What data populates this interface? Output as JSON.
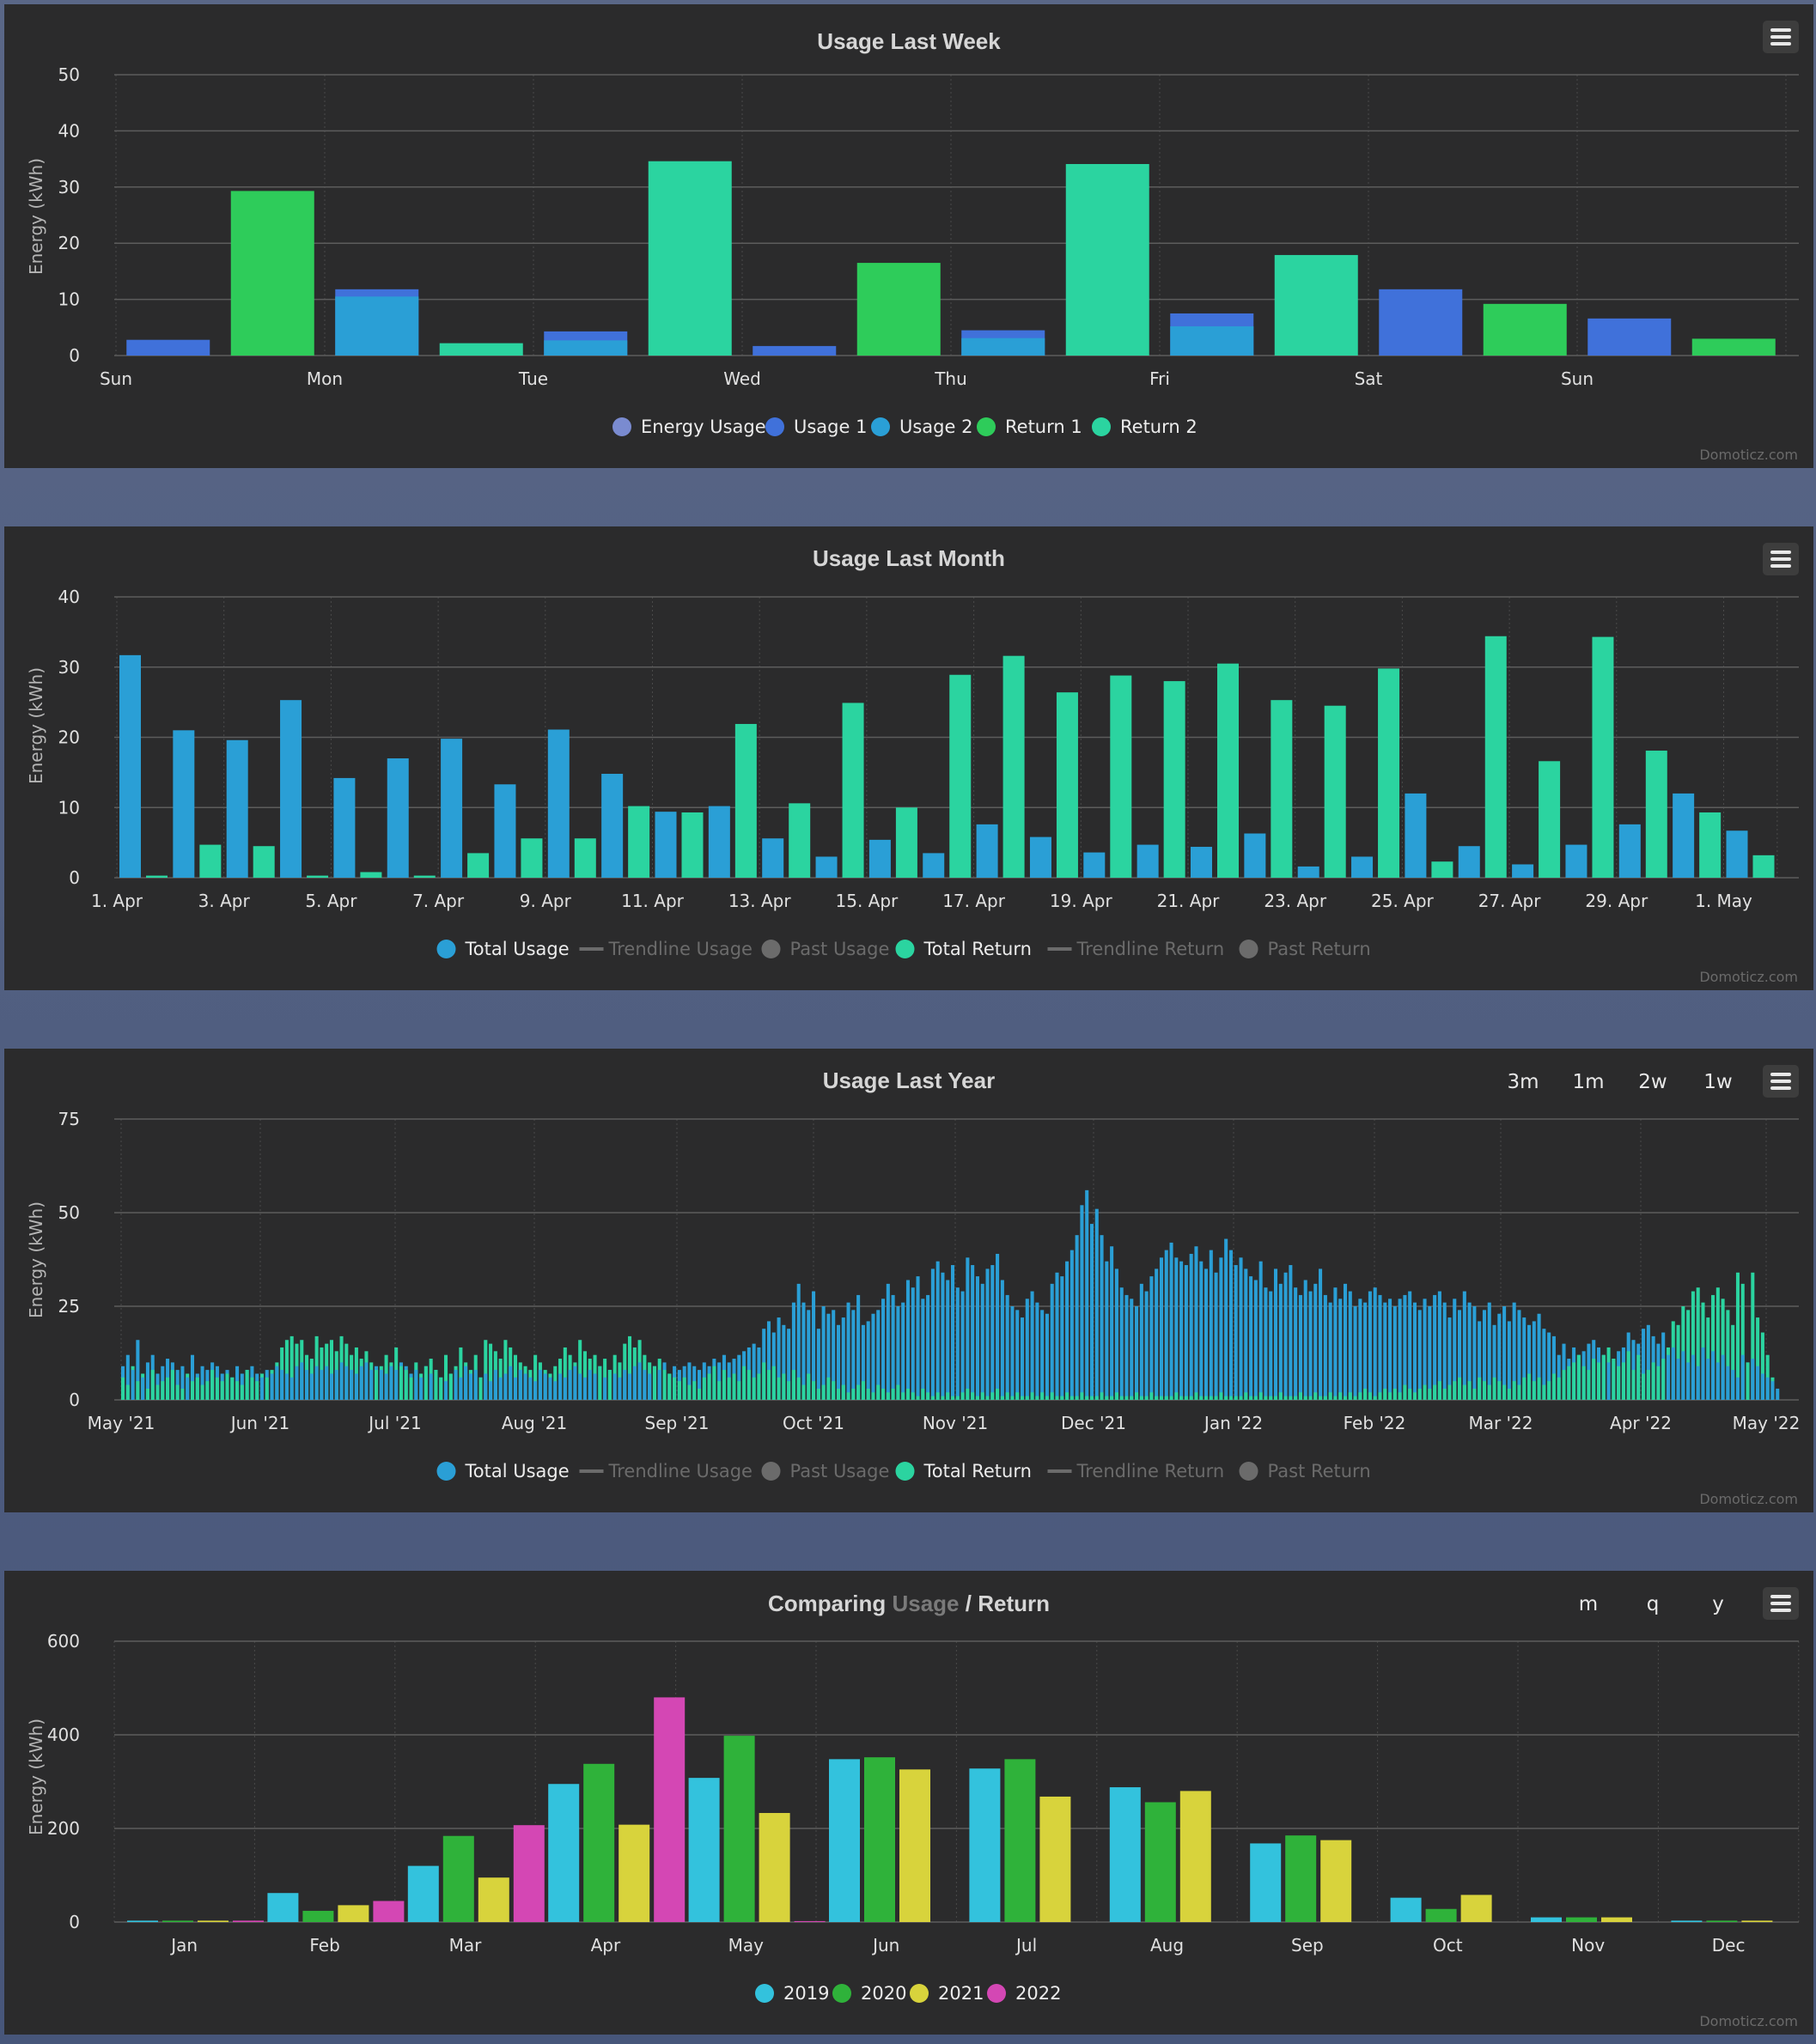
{
  "credit": "Domoticz.com",
  "colors": {
    "energy_usage": "#7a8bd0",
    "usage1": "#4071da",
    "usage2": "#2a9fd6",
    "return1": "#2ecc5a",
    "return2": "#2bd4a0",
    "total_usage": "#2a9fd6",
    "total_return": "#2bd4a0",
    "y2019": "#33c2dd",
    "y2020": "#2fb23a",
    "y2021": "#d8d33c",
    "y2022": "#d447b4",
    "disabled": "#6b6b6b"
  },
  "week": {
    "title": "Usage Last Week",
    "ylabel": "Energy (kWh)",
    "menu_icon": "hamburger-menu-icon",
    "legend": [
      "Energy Usage",
      "Usage 1",
      "Usage 2",
      "Return 1",
      "Return 2"
    ]
  },
  "month": {
    "title": "Usage Last Month",
    "ylabel": "Energy (kWh)",
    "menu_icon": "hamburger-menu-icon",
    "legend": [
      "Total Usage",
      "Trendline Usage",
      "Past Usage",
      "Total Return",
      "Trendline Return",
      "Past Return"
    ]
  },
  "year": {
    "title": "Usage Last Year",
    "ylabel": "Energy (kWh)",
    "ranges": [
      "3m",
      "1m",
      "2w",
      "1w"
    ],
    "menu_icon": "hamburger-menu-icon",
    "legend": [
      "Total Usage",
      "Trendline Usage",
      "Past Usage",
      "Total Return",
      "Trendline Return",
      "Past Return"
    ]
  },
  "compare": {
    "title_prefix": "Comparing",
    "title_usage": "Usage",
    "title_sep": "/",
    "title_return": "Return",
    "ylabel": "Energy (kWh)",
    "ranges": [
      "m",
      "q",
      "y"
    ],
    "menu_icon": "hamburger-menu-icon",
    "legend": [
      "2019",
      "2020",
      "2021",
      "2022"
    ]
  },
  "chart_data": [
    {
      "type": "bar",
      "title": "Usage Last Week",
      "ylabel": "Energy (kWh)",
      "ylim": [
        0,
        50
      ],
      "yticks": [
        0,
        10,
        20,
        30,
        40,
        50
      ],
      "xticks": [
        "Sun",
        "Mon",
        "Tue",
        "Wed",
        "Thu",
        "Fri",
        "Sat",
        "Sun"
      ],
      "grid": true,
      "legend_position": "bottom",
      "bars": [
        {
          "usage1": 2.8
        },
        {
          "return1": 29.3
        },
        {
          "usage1": 11.8,
          "usage2": 10.5
        },
        {
          "return2": 2.2
        },
        {
          "usage1": 4.3,
          "usage2": 2.7
        },
        {
          "return2": 34.6
        },
        {
          "usage1": 1.7
        },
        {
          "return1": 16.5
        },
        {
          "usage1": 4.5,
          "usage2": 3.1
        },
        {
          "return2": 34.1
        },
        {
          "usage1": 7.5,
          "usage2": 5.2
        },
        {
          "return2": 17.9
        },
        {
          "usage1": 11.8
        },
        {
          "return1": 9.2
        },
        {
          "usage1": 6.6
        },
        {
          "return1": 3.0
        }
      ]
    },
    {
      "type": "bar",
      "title": "Usage Last Month",
      "ylabel": "Energy (kWh)",
      "ylim": [
        0,
        40
      ],
      "yticks": [
        0,
        10,
        20,
        30,
        40
      ],
      "xticks": [
        "1. Apr",
        "3. Apr",
        "5. Apr",
        "7. Apr",
        "9. Apr",
        "11. Apr",
        "13. Apr",
        "15. Apr",
        "17. Apr",
        "19. Apr",
        "21. Apr",
        "23. Apr",
        "25. Apr",
        "27. Apr",
        "29. Apr",
        "1. May"
      ],
      "grid": true,
      "legend_position": "bottom",
      "series": [
        {
          "name": "Total Usage",
          "values": [
            31.7,
            21.0,
            19.6,
            25.3,
            14.2,
            17.0,
            19.8,
            13.3,
            21.1,
            14.8,
            9.4,
            10.2,
            5.6,
            3.0,
            5.4,
            3.5,
            7.6,
            5.8,
            3.6,
            4.7,
            4.4,
            6.3,
            1.6,
            3.0,
            12.0,
            4.5,
            1.9,
            4.7,
            7.6,
            12.0,
            6.7
          ]
        },
        {
          "name": "Total Return",
          "values": [
            0.3,
            4.7,
            4.5,
            0.3,
            0.8,
            0.3,
            3.5,
            5.6,
            5.6,
            10.2,
            9.3,
            21.9,
            10.6,
            24.9,
            10.0,
            28.9,
            31.6,
            26.4,
            28.8,
            28.0,
            30.5,
            25.3,
            24.5,
            29.8,
            2.3,
            34.4,
            16.6,
            34.3,
            18.1,
            9.3,
            3.2
          ]
        }
      ]
    },
    {
      "type": "bar",
      "title": "Usage Last Year",
      "ylabel": "Energy (kWh)",
      "ylim": [
        0,
        75
      ],
      "yticks": [
        0,
        25,
        50,
        75
      ],
      "xticks": [
        "May '21",
        "Jun '21",
        "Jul '21",
        "Aug '21",
        "Sep '21",
        "Oct '21",
        "Nov '21",
        "Dec '21",
        "Jan '22",
        "Feb '22",
        "Mar '22",
        "Apr '22",
        "May '22"
      ],
      "grid": true,
      "legend_position": "bottom",
      "series": [
        {
          "name": "Total Usage",
          "values": [
            9,
            12,
            8,
            16,
            6,
            10,
            12,
            7,
            9,
            11,
            10,
            8,
            9,
            6,
            12,
            7,
            9,
            8,
            10,
            9,
            7,
            8,
            6,
            9,
            7,
            8,
            9,
            7,
            6,
            8,
            7,
            9,
            8,
            7,
            6,
            9,
            10,
            8,
            7,
            9,
            8,
            9,
            7,
            8,
            10,
            9,
            8,
            7,
            9,
            10,
            8,
            9,
            8,
            7,
            9,
            8,
            10,
            9,
            7,
            8,
            6,
            9,
            7,
            8,
            6,
            5,
            7,
            8,
            6,
            9,
            7,
            8,
            6,
            7,
            5,
            8,
            6,
            7,
            9,
            6,
            8,
            7,
            6,
            5,
            8,
            7,
            6,
            5,
            7,
            6,
            8,
            9,
            7,
            6,
            8,
            7,
            9,
            6,
            8,
            7,
            6,
            8,
            7,
            9,
            10,
            8,
            7,
            9,
            8,
            10,
            7,
            9,
            8,
            9,
            10,
            9,
            8,
            10,
            9,
            11,
            10,
            12,
            10,
            11,
            12,
            13,
            14,
            15,
            14,
            19,
            21,
            18,
            22,
            20,
            19,
            26,
            31,
            26,
            24,
            29,
            19,
            25,
            23,
            24,
            20,
            22,
            26,
            24,
            28,
            20,
            21,
            23,
            24,
            27,
            31,
            28,
            25,
            26,
            32,
            30,
            33,
            27,
            28,
            35,
            37,
            34,
            32,
            36,
            30,
            29,
            38,
            36,
            33,
            31,
            35,
            36,
            39,
            32,
            28,
            25,
            24,
            22,
            27,
            29,
            26,
            24,
            23,
            31,
            34,
            33,
            37,
            40,
            44,
            52,
            56,
            47,
            51,
            44,
            37,
            41,
            35,
            30,
            28,
            27,
            25,
            31,
            29,
            33,
            35,
            38,
            40,
            42,
            38,
            37,
            36,
            39,
            41,
            37,
            35,
            40,
            34,
            38,
            43,
            40,
            36,
            38,
            35,
            33,
            32,
            37,
            30,
            29,
            35,
            31,
            34,
            36,
            30,
            28,
            32,
            29,
            31,
            35,
            28,
            26,
            30,
            27,
            31,
            29,
            25,
            27,
            26,
            29,
            30,
            28,
            26,
            27,
            25,
            27,
            28,
            29,
            26,
            24,
            27,
            25,
            28,
            29,
            26,
            22,
            27,
            24,
            29,
            26,
            25,
            21,
            24,
            26,
            20,
            23,
            25,
            21,
            26,
            24,
            22,
            20,
            21,
            23,
            19,
            18,
            17,
            12,
            15,
            11,
            14,
            12,
            13,
            15,
            16,
            14,
            12,
            10,
            11,
            13,
            14,
            18,
            16,
            15,
            19,
            20,
            17,
            15,
            18,
            12,
            14,
            11,
            13,
            10,
            12,
            9,
            14,
            11,
            13,
            10,
            12,
            9,
            8,
            6,
            12,
            10,
            11,
            9,
            7,
            6,
            5,
            3
          ]
        },
        {
          "name": "Total Return",
          "values": [
            6,
            4,
            9,
            5,
            7,
            3,
            8,
            4,
            5,
            6,
            8,
            4,
            3,
            7,
            5,
            6,
            4,
            5,
            8,
            6,
            5,
            7,
            6,
            5,
            4,
            8,
            6,
            5,
            7,
            6,
            8,
            10,
            14,
            16,
            17,
            15,
            16,
            12,
            11,
            17,
            14,
            15,
            16,
            13,
            17,
            15,
            12,
            14,
            11,
            13,
            10,
            8,
            9,
            12,
            10,
            14,
            9,
            8,
            6,
            10,
            7,
            9,
            11,
            8,
            6,
            12,
            7,
            9,
            14,
            10,
            8,
            12,
            6,
            16,
            15,
            13,
            11,
            16,
            14,
            12,
            10,
            9,
            8,
            12,
            10,
            8,
            7,
            9,
            11,
            14,
            12,
            10,
            16,
            13,
            11,
            12,
            9,
            11,
            8,
            12,
            10,
            15,
            17,
            14,
            16,
            12,
            10,
            9,
            11,
            8,
            7,
            6,
            5,
            6,
            4,
            5,
            3,
            6,
            7,
            9,
            5,
            8,
            6,
            7,
            5,
            9,
            8,
            6,
            7,
            10,
            8,
            9,
            6,
            7,
            5,
            8,
            6,
            4,
            7,
            5,
            3,
            4,
            6,
            5,
            3,
            4,
            2,
            3,
            4,
            5,
            3,
            2,
            4,
            3,
            2,
            3,
            4,
            2,
            3,
            2,
            1,
            3,
            2,
            1,
            2,
            1,
            2,
            1,
            1,
            2,
            3,
            2,
            1,
            2,
            1,
            2,
            3,
            1,
            2,
            1,
            2,
            1,
            1,
            2,
            1,
            2,
            1,
            2,
            1,
            1,
            2,
            1,
            1,
            2,
            1,
            1,
            1,
            2,
            1,
            1,
            2,
            1,
            1,
            1,
            2,
            1,
            1,
            2,
            1,
            1,
            1,
            1,
            2,
            1,
            1,
            1,
            2,
            1,
            1,
            1,
            1,
            2,
            1,
            1,
            1,
            1,
            2,
            1,
            1,
            2,
            1,
            1,
            1,
            2,
            1,
            1,
            1,
            2,
            1,
            1,
            2,
            1,
            1,
            2,
            1,
            2,
            1,
            2,
            1,
            2,
            3,
            2,
            1,
            2,
            3,
            2,
            3,
            2,
            4,
            3,
            2,
            3,
            4,
            3,
            4,
            5,
            3,
            4,
            5,
            6,
            4,
            5,
            3,
            6,
            5,
            4,
            6,
            5,
            4,
            3,
            5,
            4,
            6,
            7,
            5,
            6,
            4,
            5,
            7,
            6,
            8,
            9,
            10,
            12,
            9,
            8,
            11,
            10,
            12,
            14,
            11,
            9,
            10,
            13,
            8,
            12,
            7,
            8,
            10,
            9,
            11,
            14,
            21,
            20,
            25,
            24,
            29,
            30,
            26,
            22,
            28,
            30,
            27,
            24,
            20,
            34,
            31,
            10,
            34,
            22,
            18,
            12,
            6
          ]
        }
      ]
    },
    {
      "type": "bar",
      "title": "Comparing Usage / Return",
      "ylabel": "Energy (kWh)",
      "ylim": [
        0,
        600
      ],
      "yticks": [
        0,
        200,
        400,
        600
      ],
      "categories": [
        "Jan",
        "Feb",
        "Mar",
        "Apr",
        "May",
        "Jun",
        "Jul",
        "Aug",
        "Sep",
        "Oct",
        "Nov",
        "Dec"
      ],
      "grid": true,
      "legend_position": "bottom",
      "series": [
        {
          "name": "2019",
          "values": [
            3,
            62,
            120,
            295,
            308,
            348,
            328,
            288,
            168,
            52,
            10,
            3
          ]
        },
        {
          "name": "2020",
          "values": [
            3,
            24,
            184,
            338,
            398,
            352,
            348,
            256,
            185,
            28,
            10,
            3
          ]
        },
        {
          "name": "2021",
          "values": [
            3,
            36,
            95,
            208,
            233,
            326,
            268,
            280,
            175,
            58,
            10,
            3
          ]
        },
        {
          "name": "2022",
          "values": [
            3,
            45,
            207,
            480,
            2,
            null,
            null,
            null,
            null,
            null,
            null,
            null
          ]
        }
      ]
    }
  ]
}
